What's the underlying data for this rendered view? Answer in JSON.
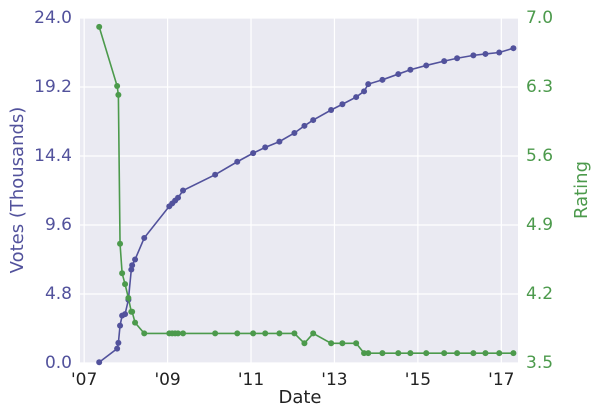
{
  "chart_data": {
    "type": "line",
    "xlabel": "Date",
    "ylabel": "Votes (Thousands)",
    "y2label": "Rating",
    "x": [
      2007.36,
      2007.79,
      2007.82,
      2007.86,
      2007.91,
      2007.98,
      2008.06,
      2008.13,
      2008.15,
      2008.22,
      2008.44,
      2009.04,
      2009.11,
      2009.18,
      2009.25,
      2009.37,
      2010.14,
      2010.67,
      2011.05,
      2011.34,
      2011.68,
      2012.04,
      2012.28,
      2012.49,
      2012.92,
      2013.19,
      2013.52,
      2013.71,
      2013.81,
      2014.15,
      2014.53,
      2014.82,
      2015.2,
      2015.63,
      2015.94,
      2016.33,
      2016.62,
      2016.95,
      2017.29
    ],
    "series": [
      {
        "color": "#52529c",
        "values": [
          0.05,
          1.0,
          1.4,
          2.6,
          3.3,
          3.4,
          4.4,
          6.5,
          6.8,
          7.2,
          8.7,
          10.9,
          11.1,
          11.3,
          11.5,
          12.0,
          13.1,
          14.0,
          14.6,
          15.0,
          15.4,
          16.0,
          16.5,
          16.9,
          17.6,
          18.0,
          18.5,
          18.9,
          19.4,
          19.7,
          20.1,
          20.4,
          20.7,
          21.0,
          21.2,
          21.4,
          21.5,
          21.6,
          21.9
        ]
      },
      {
        "color": "#4c9a4c",
        "axis": "y2",
        "values": [
          6.91,
          6.31,
          6.22,
          4.71,
          4.41,
          4.3,
          4.16,
          4.02,
          4.02,
          3.91,
          3.8,
          3.8,
          3.8,
          3.8,
          3.8,
          3.8,
          3.8,
          3.8,
          3.8,
          3.8,
          3.8,
          3.8,
          3.7,
          3.8,
          3.7,
          3.7,
          3.7,
          3.6,
          3.6,
          3.6,
          3.6,
          3.6,
          3.6,
          3.6,
          3.6,
          3.6,
          3.6,
          3.6,
          3.6
        ]
      }
    ],
    "xlim": [
      2006.9,
      2017.4
    ],
    "xticks": [
      {
        "value": 2007,
        "label": "'07"
      },
      {
        "value": 2009,
        "label": "'09"
      },
      {
        "value": 2011,
        "label": "'11"
      },
      {
        "value": 2013,
        "label": "'13"
      },
      {
        "value": 2015,
        "label": "'15"
      },
      {
        "value": 2017,
        "label": "'17"
      }
    ],
    "ylim": [
      0,
      24
    ],
    "yticks": [
      {
        "value": 0,
        "label": "0.0"
      },
      4.8,
      9.6,
      14.4,
      19.2,
      {
        "value": 24,
        "label": "24.0"
      }
    ],
    "y2lim": [
      3.5,
      7.0
    ],
    "y2ticks": [
      3.5,
      4.2,
      4.9,
      5.6,
      6.3,
      {
        "value": 7.0,
        "label": "7.0"
      }
    ],
    "grid": true
  }
}
